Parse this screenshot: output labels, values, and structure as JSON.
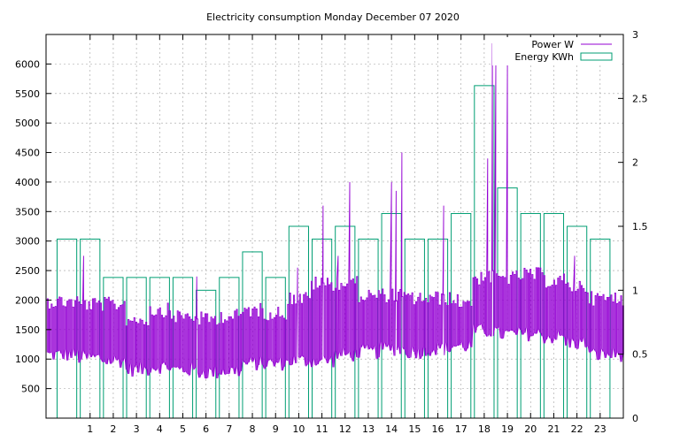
{
  "chart_data": {
    "type": "line",
    "title": "Electricity consumption Monday December 07 2020",
    "xlabel": "",
    "ylabel": "",
    "y2label": "",
    "x_ticks": [
      1,
      2,
      3,
      4,
      5,
      6,
      7,
      8,
      9,
      10,
      11,
      12,
      13,
      14,
      15,
      16,
      17,
      18,
      19,
      20,
      21,
      22,
      23
    ],
    "xlim": [
      -0.9,
      24.0
    ],
    "y_ticks": [
      500,
      1000,
      1500,
      2000,
      2500,
      3000,
      3500,
      4000,
      4500,
      5000,
      5500,
      6000
    ],
    "ylim": [
      0,
      6500
    ],
    "y2_ticks": [
      0,
      0.5,
      1,
      1.5,
      2,
      2.5,
      3
    ],
    "y2_tick_labels": [
      "0",
      "0.5",
      "1",
      "1.5",
      "2",
      "2.5",
      "3"
    ],
    "y2lim": [
      0,
      3
    ],
    "grid": true,
    "legend_position": "top-right",
    "colors": {
      "power": "#9400d3",
      "energy": "#009e73",
      "grid": "#a0a0a0",
      "axis": "#000000"
    },
    "series": [
      {
        "name": "Energy KWh",
        "type": "step",
        "axis": "right",
        "hours": [
          0,
          1,
          2,
          3,
          4,
          5,
          6,
          7,
          8,
          9,
          10,
          11,
          12,
          13,
          14,
          15,
          16,
          17,
          18,
          19,
          20,
          21,
          22,
          23
        ],
        "values": [
          1.4,
          1.4,
          1.1,
          1.1,
          1.1,
          1.1,
          1.0,
          1.1,
          1.3,
          1.1,
          1.5,
          1.4,
          1.5,
          1.4,
          1.6,
          1.4,
          1.4,
          1.6,
          2.6,
          1.8,
          1.6,
          1.6,
          1.5,
          1.4
        ]
      },
      {
        "name": "Power W",
        "type": "line",
        "axis": "left",
        "hour_low": [
          950,
          900,
          850,
          700,
          750,
          700,
          650,
          680,
          800,
          800,
          850,
          850,
          950,
          1000,
          1050,
          1000,
          1050,
          1100,
          1350,
          1300,
          1300,
          1250,
          1150,
          950
        ],
        "hour_high": [
          2100,
          2050,
          2050,
          1800,
          1950,
          1850,
          1800,
          1850,
          1950,
          1900,
          2150,
          2400,
          2400,
          2200,
          2200,
          2150,
          2150,
          2100,
          2500,
          2500,
          2550,
          2450,
          2350,
          2150
        ],
        "spikes": [
          {
            "x": 0.72,
            "y": 2750
          },
          {
            "x": 5.6,
            "y": 2400
          },
          {
            "x": 9.95,
            "y": 2550
          },
          {
            "x": 11.05,
            "y": 3600
          },
          {
            "x": 11.7,
            "y": 2750
          },
          {
            "x": 12.2,
            "y": 4000
          },
          {
            "x": 14.0,
            "y": 4000
          },
          {
            "x": 14.2,
            "y": 3850
          },
          {
            "x": 14.45,
            "y": 4500
          },
          {
            "x": 16.25,
            "y": 3600
          },
          {
            "x": 18.15,
            "y": 4400
          },
          {
            "x": 18.35,
            "y": 6350
          },
          {
            "x": 18.5,
            "y": 6000
          },
          {
            "x": 19.0,
            "y": 6000
          },
          {
            "x": 21.9,
            "y": 2750
          }
        ]
      }
    ]
  }
}
